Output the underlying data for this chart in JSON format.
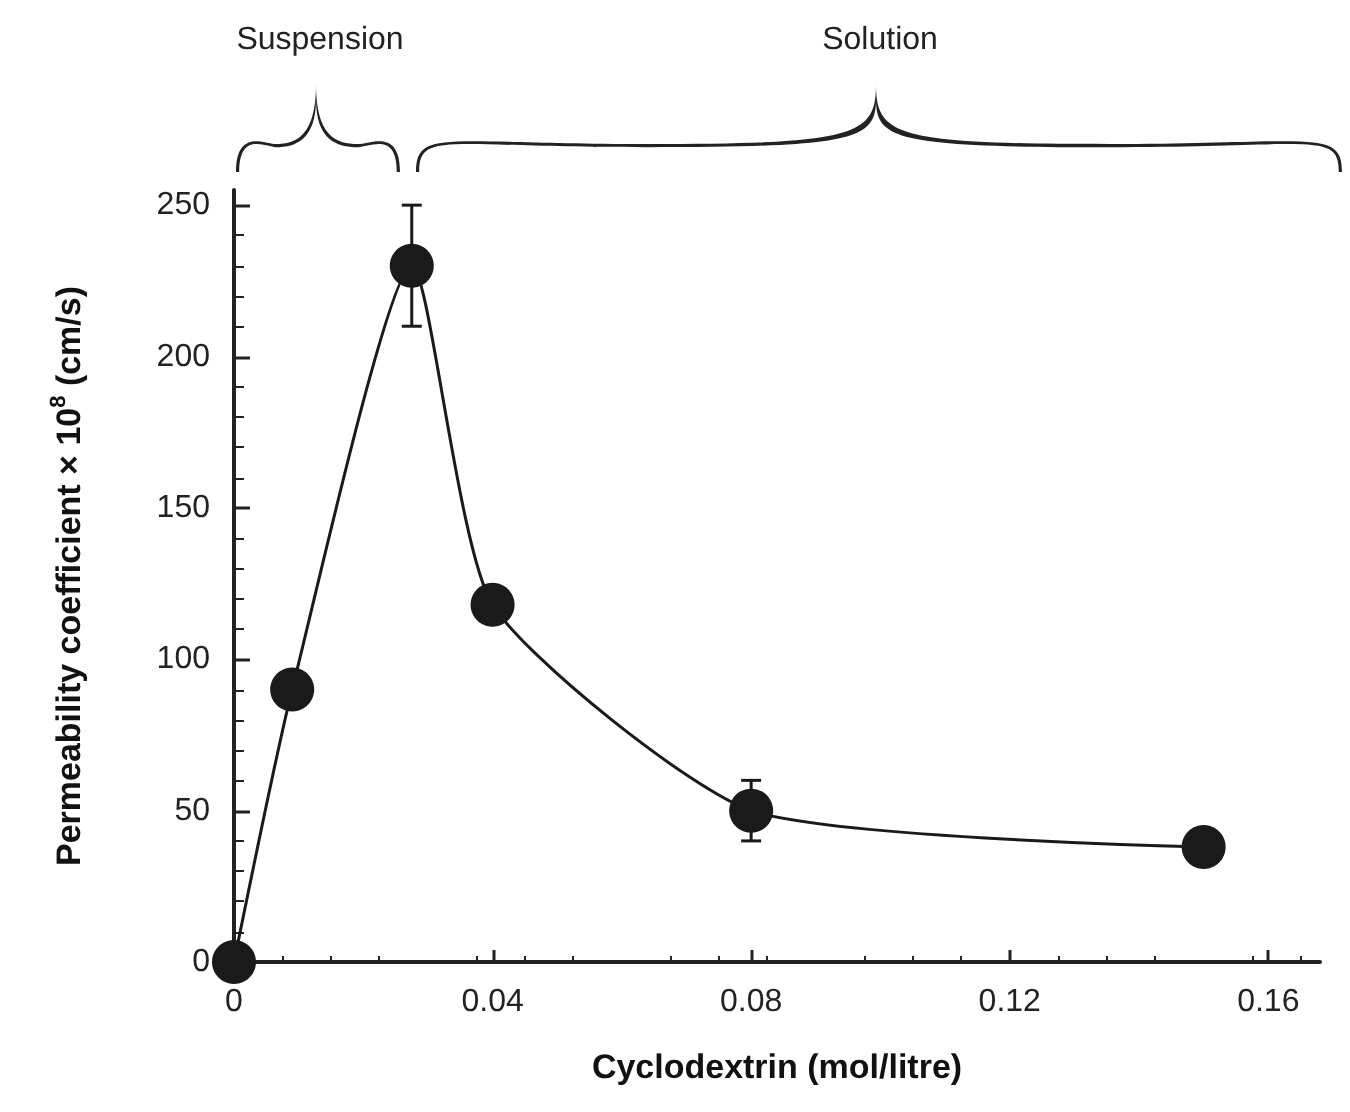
{
  "chart_data": {
    "type": "line",
    "xlabel": "Cyclodextrin (mol/litre)",
    "ylabel": "Permeability coefficient × 10$^{8}$ (cm/s)",
    "annotations": [
      "Suspension",
      "Solution"
    ],
    "x": [
      0,
      0.009,
      0.0275,
      0.04,
      0.08,
      0.15
    ],
    "series": [
      {
        "color": "#1a1a1a",
        "values": [
          0,
          90,
          230,
          118,
          50,
          38
        ],
        "errors": [
          null,
          null,
          20,
          null,
          10,
          6
        ]
      }
    ],
    "xlim": [
      0,
      0.168
    ],
    "xticks": [
      0,
      0.04,
      0.08,
      0.12,
      0.16
    ],
    "ylim": [
      0,
      255
    ],
    "yticks": [
      0,
      50,
      100,
      150,
      200,
      250
    ],
    "marker": "circle",
    "line_style": "solid",
    "grid": false
  }
}
